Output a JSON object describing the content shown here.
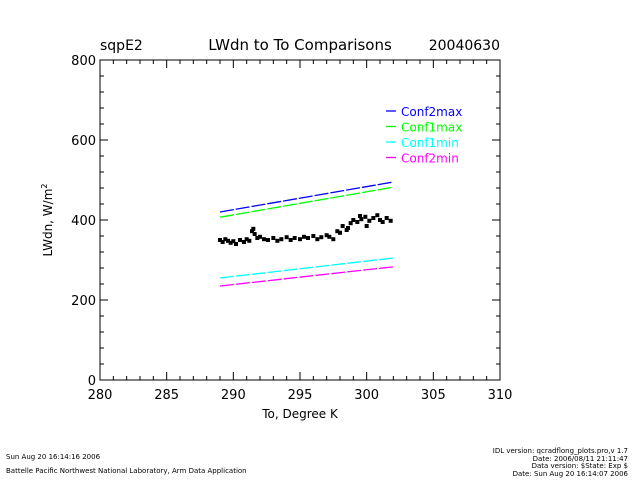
{
  "header": {
    "site": "sqpE2",
    "title": "LWdn to To Comparisons",
    "date": "20040630"
  },
  "footer": {
    "left": [
      "Sun Aug 20 16:14:16 2006",
      "Battelle Pacific Northwest National Laboratory, Arm Data Application"
    ],
    "right": [
      "IDL version: qcradflong_plots.pro,v 1.7",
      "Date: 2006/08/11 21:11:47",
      "Data version: $State: Exp $",
      "Date: Sun Aug 20 16:14:07 2006"
    ]
  },
  "chart_data": {
    "type": "scatter",
    "title": "LWdn to To Comparisons",
    "xlabel": "To, Degree K",
    "ylabel": "LWdn, W/m",
    "ylabel_sup": "2",
    "xlim": [
      280,
      310
    ],
    "ylim": [
      0,
      800
    ],
    "xticks": [
      280,
      285,
      290,
      295,
      300,
      305,
      310
    ],
    "yticks": [
      0,
      200,
      400,
      600,
      800
    ],
    "grid": false,
    "legend_position": "top-right",
    "lines": [
      {
        "name": "Conf2max",
        "color": "#0000ff",
        "x": [
          289,
          302
        ],
        "y": [
          420,
          495
        ]
      },
      {
        "name": "Conf1max",
        "color": "#00ff00",
        "x": [
          289,
          302
        ],
        "y": [
          407,
          482
        ]
      },
      {
        "name": "Conf1min",
        "color": "#00ffff",
        "x": [
          289,
          302
        ],
        "y": [
          255,
          305
        ]
      },
      {
        "name": "Conf2min",
        "color": "#ff00ff",
        "x": [
          289,
          302
        ],
        "y": [
          235,
          283
        ]
      }
    ],
    "points": {
      "color": "#000000",
      "x": [
        289.0,
        289.2,
        289.4,
        289.6,
        289.8,
        290.0,
        290.2,
        290.5,
        290.8,
        291.0,
        291.2,
        291.4,
        291.5,
        291.6,
        291.8,
        292.0,
        292.3,
        292.6,
        293.0,
        293.3,
        293.6,
        294.0,
        294.3,
        294.6,
        295.0,
        295.3,
        295.6,
        296.0,
        296.3,
        296.6,
        297.0,
        297.2,
        297.5,
        297.8,
        298.0,
        298.2,
        298.5,
        298.8,
        299.0,
        299.3,
        299.6,
        299.9,
        300.2,
        300.5,
        300.8,
        301.0,
        301.2,
        301.5,
        301.8,
        300.0,
        299.5,
        298.6
      ],
      "y": [
        350,
        345,
        352,
        348,
        343,
        347,
        340,
        350,
        345,
        352,
        348,
        372,
        378,
        365,
        355,
        358,
        352,
        350,
        355,
        348,
        352,
        357,
        350,
        355,
        352,
        358,
        355,
        360,
        352,
        357,
        362,
        358,
        352,
        372,
        368,
        385,
        375,
        392,
        400,
        395,
        402,
        408,
        398,
        405,
        412,
        400,
        395,
        405,
        398,
        385,
        410,
        380
      ]
    }
  }
}
